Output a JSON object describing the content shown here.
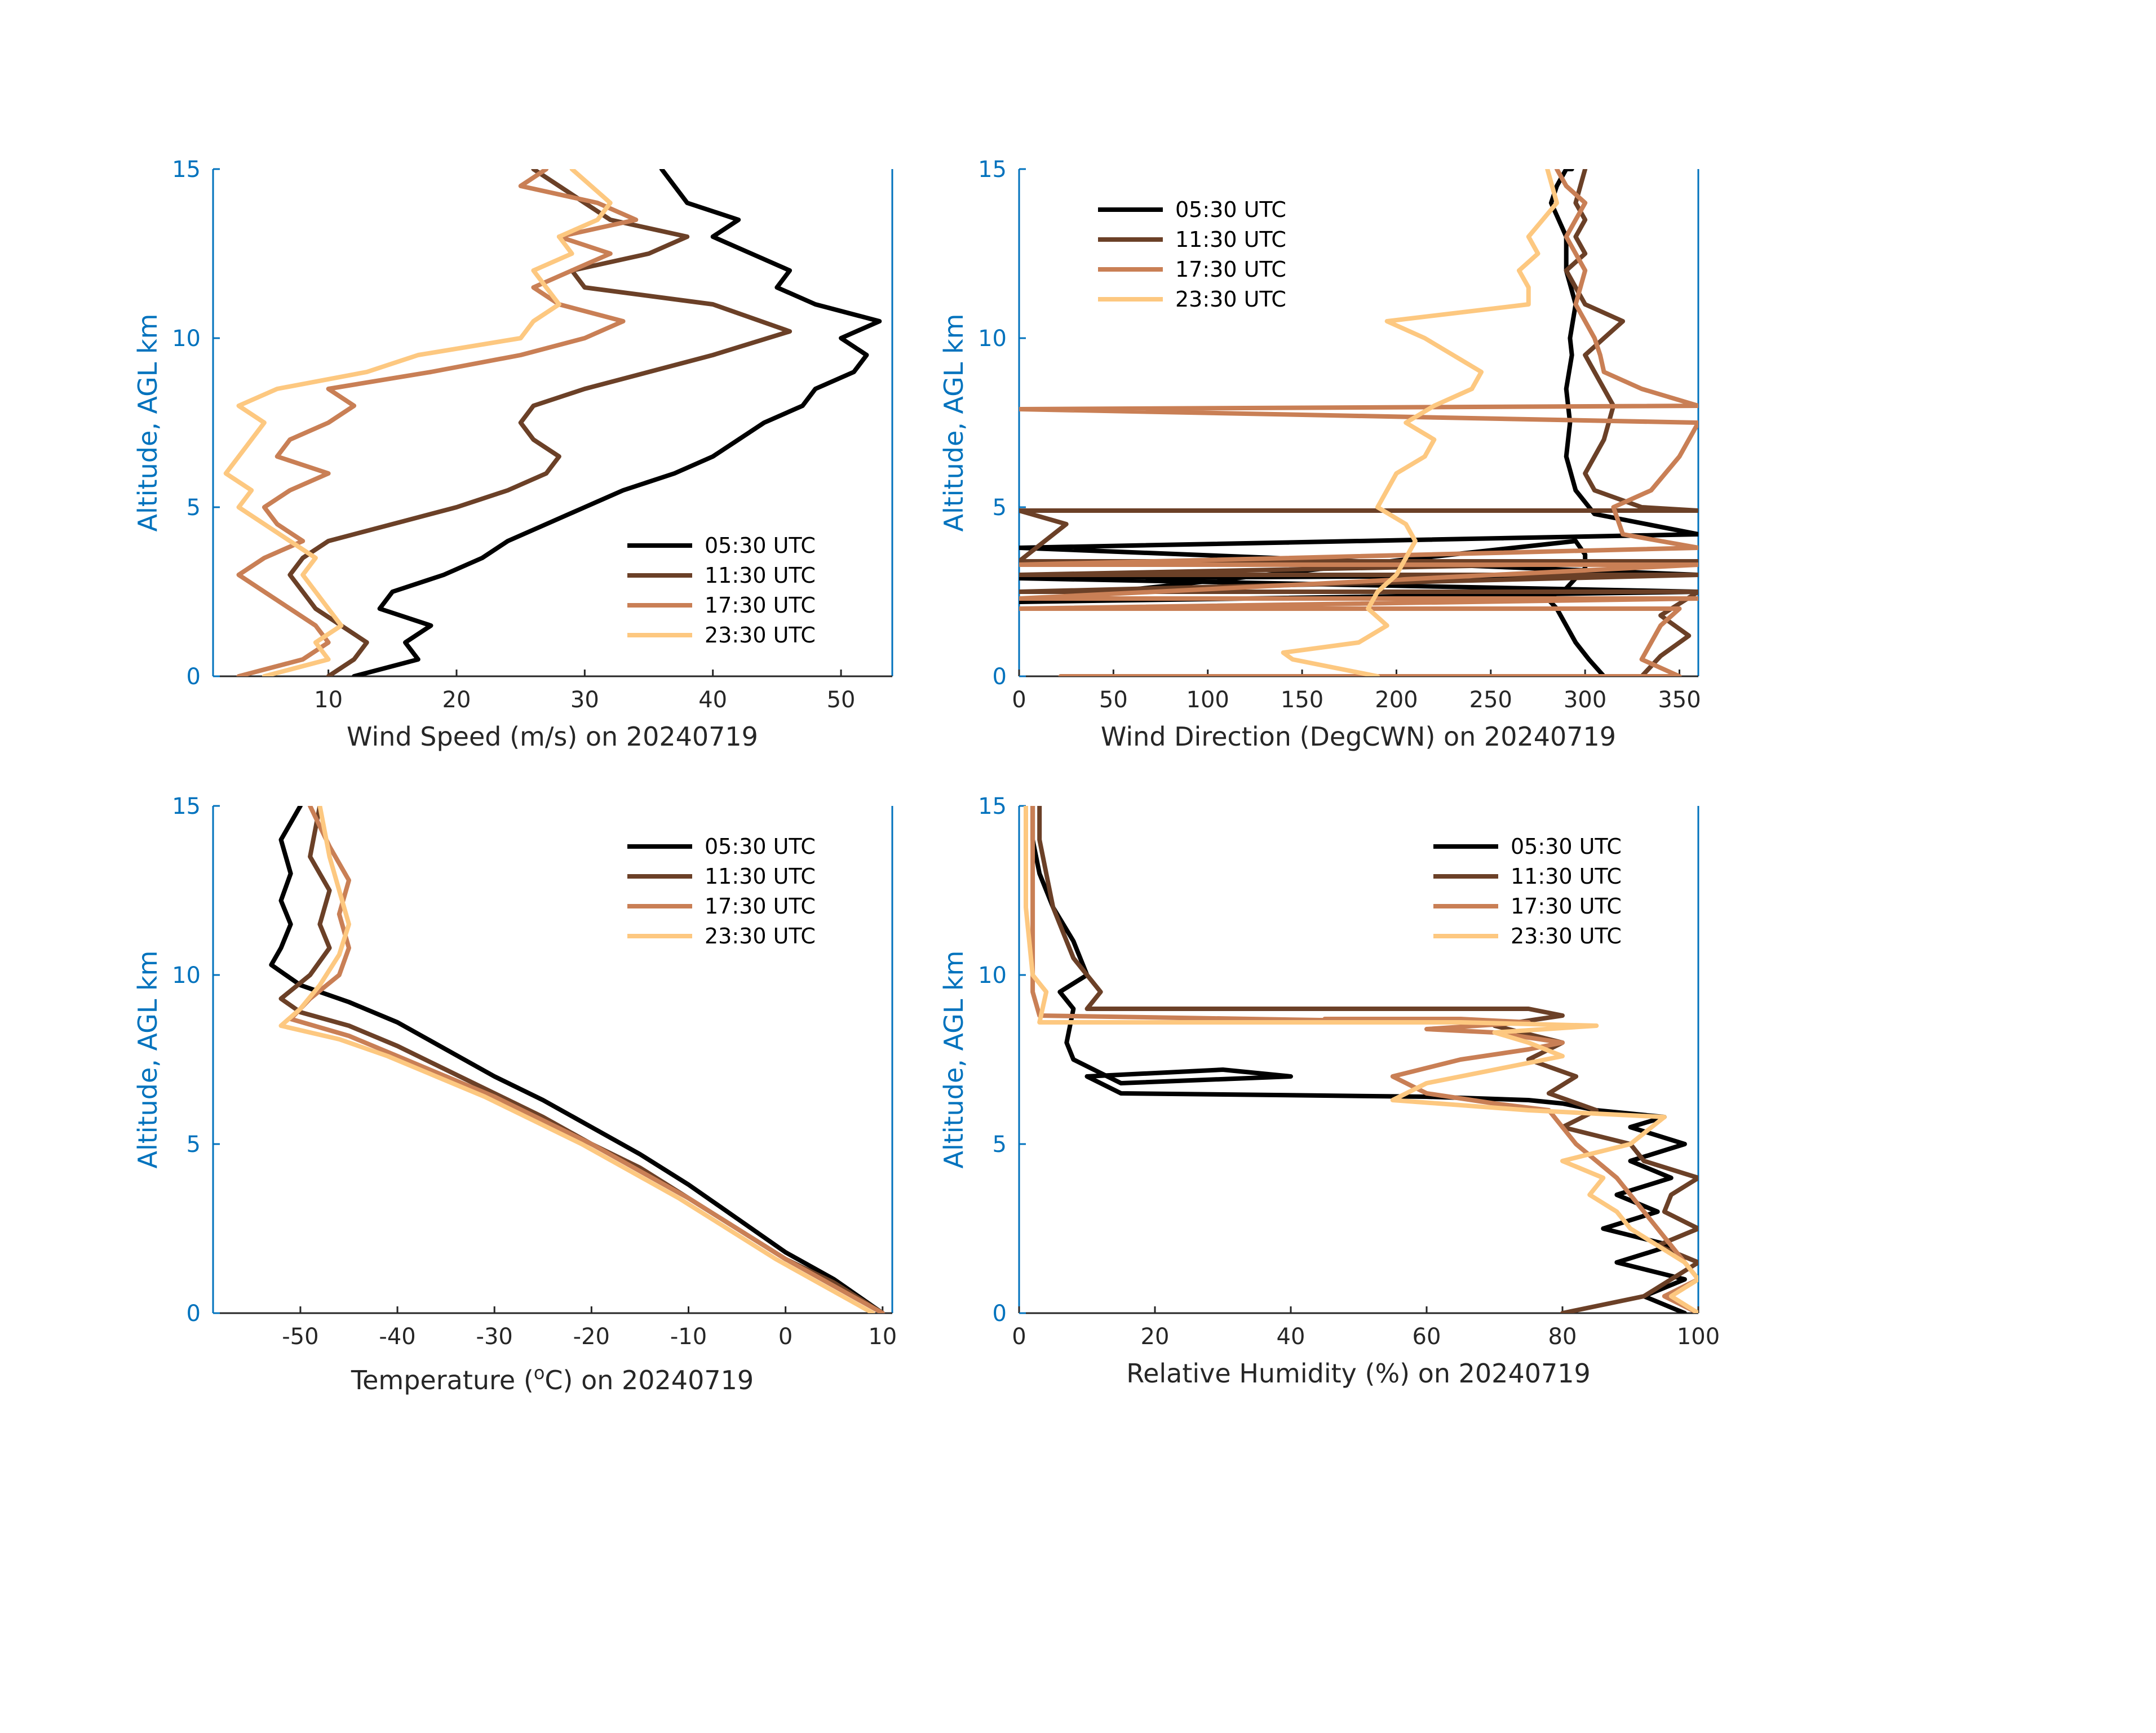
{
  "colors": {
    "axis_left": "#0072BD",
    "axis_other": "#262626",
    "series": [
      "#000000",
      "#6B4027",
      "#C97F55",
      "#FDC880"
    ]
  },
  "chart_data": [
    {
      "type": "line",
      "orientation": "profile",
      "xlabel": "Wind Speed (m/s) on 20240719",
      "ylabel": "Altitude, AGL km",
      "xlim": [
        1,
        54
      ],
      "ylim": [
        0,
        15
      ],
      "xticks": [
        10,
        20,
        30,
        40,
        50
      ],
      "yticks": [
        0,
        5,
        10,
        15
      ],
      "legend_position": "lower-right",
      "series": [
        {
          "name": "05:30 UTC",
          "x": [
            12,
            17,
            16,
            18,
            14,
            15,
            19,
            22,
            24,
            27,
            30,
            33,
            37,
            40,
            42,
            44,
            47,
            48,
            51,
            52,
            50,
            53,
            48,
            45,
            46,
            43,
            40,
            42,
            38,
            36
          ],
          "y": [
            0,
            0.5,
            1.0,
            1.5,
            2.0,
            2.5,
            3.0,
            3.5,
            4.0,
            4.5,
            5.0,
            5.5,
            6.0,
            6.5,
            7.0,
            7.5,
            8.0,
            8.5,
            9.0,
            9.5,
            10.0,
            10.5,
            11.0,
            11.5,
            12.0,
            12.5,
            13.0,
            13.5,
            14.0,
            15.0
          ]
        },
        {
          "name": "11:30 UTC",
          "x": [
            10,
            12,
            13,
            11,
            9,
            8,
            7,
            8,
            10,
            15,
            20,
            24,
            27,
            28,
            26,
            25,
            26,
            30,
            35,
            40,
            46,
            40,
            30,
            29,
            35,
            38,
            32,
            30,
            28,
            26
          ],
          "y": [
            0,
            0.5,
            1.0,
            1.5,
            2.0,
            2.5,
            3.0,
            3.5,
            4.0,
            4.5,
            5.0,
            5.5,
            6.0,
            6.5,
            7.0,
            7.5,
            8.0,
            8.5,
            9.0,
            9.5,
            10.2,
            11.0,
            11.5,
            12.0,
            12.5,
            13.0,
            13.5,
            14.0,
            14.5,
            15.0
          ]
        },
        {
          "name": "17:30 UTC",
          "x": [
            3,
            8,
            10,
            9,
            7,
            5,
            3,
            5,
            8,
            6,
            5,
            7,
            10,
            6,
            7,
            10,
            12,
            10,
            18,
            25,
            30,
            33,
            28,
            26,
            29,
            32,
            28,
            34,
            31,
            25,
            27
          ],
          "y": [
            0,
            0.5,
            1.0,
            1.5,
            2.0,
            2.5,
            3.0,
            3.5,
            4.0,
            4.5,
            5.0,
            5.5,
            6.0,
            6.5,
            7.0,
            7.5,
            8.0,
            8.5,
            9.0,
            9.5,
            10.0,
            10.5,
            11.0,
            11.5,
            12.0,
            12.5,
            13.0,
            13.5,
            14.0,
            14.5,
            15.0
          ]
        },
        {
          "name": "23:30 UTC",
          "x": [
            5,
            10,
            9,
            11,
            10,
            9,
            8,
            9,
            7,
            5,
            3,
            4,
            2,
            3,
            4,
            5,
            3,
            6,
            13,
            17,
            25,
            26,
            28,
            27,
            26,
            29,
            28,
            31,
            32,
            29
          ],
          "y": [
            0,
            0.5,
            1.0,
            1.5,
            2.0,
            2.5,
            3.0,
            3.5,
            4.0,
            4.5,
            5.0,
            5.5,
            6.0,
            6.5,
            7.0,
            7.5,
            8.0,
            8.5,
            9.0,
            9.5,
            10.0,
            10.5,
            11.0,
            11.5,
            12.0,
            12.5,
            13.0,
            13.5,
            14.0,
            15.0
          ]
        }
      ]
    },
    {
      "type": "line",
      "orientation": "profile",
      "xlabel": "Wind Direction (DegCWN) on 20240719",
      "ylabel": "Altitude, AGL km",
      "xlim": [
        0,
        360
      ],
      "ylim": [
        0,
        15
      ],
      "xticks": [
        0,
        50,
        100,
        150,
        200,
        250,
        300,
        350
      ],
      "yticks": [
        0,
        5,
        10,
        15
      ],
      "legend_position": "top-left",
      "series": [
        {
          "name": "05:30 UTC",
          "x": [
            310,
            302,
            295,
            290,
            285,
            280,
            290,
            300,
            300,
            295,
            0,
            360,
            0,
            360,
            0,
            360,
            305,
            295,
            290,
            292,
            290,
            293,
            292,
            295,
            290,
            290,
            282,
            285,
            290,
            293
          ],
          "y": [
            0,
            0.5,
            1.0,
            1.5,
            2.0,
            2.3,
            2.6,
            3.2,
            3.6,
            4.0,
            2.2,
            2.5,
            2.9,
            3.0,
            3.8,
            4.2,
            4.8,
            5.5,
            6.5,
            7.5,
            8.5,
            9.5,
            10.0,
            11.0,
            12.0,
            13.0,
            14.0,
            14.5,
            15.0,
            15.0
          ]
        },
        {
          "name": "11:30 UTC",
          "x": [
            330,
            340,
            355,
            340,
            360,
            0,
            360,
            0,
            360,
            0,
            25,
            0,
            360,
            330,
            305,
            300,
            310,
            315,
            305,
            300,
            310,
            320,
            300,
            295,
            290,
            300,
            295,
            300,
            295,
            300
          ],
          "y": [
            0,
            0.6,
            1.2,
            1.8,
            2.5,
            2.5,
            3.0,
            3.0,
            3.4,
            3.4,
            4.5,
            4.9,
            4.9,
            5.0,
            5.5,
            6.0,
            7.0,
            8.0,
            9.0,
            9.5,
            10.0,
            10.5,
            11.0,
            11.5,
            12.0,
            12.5,
            13.0,
            13.5,
            14.0,
            15.0
          ]
        },
        {
          "name": "17:30 UTC",
          "x": [
            22,
            350,
            330,
            340,
            350,
            0,
            360,
            0,
            360,
            0,
            360,
            320,
            315,
            335,
            350,
            360,
            0,
            360,
            330,
            310,
            308,
            305,
            300,
            295,
            300,
            290,
            295,
            300,
            290,
            285
          ],
          "y": [
            0,
            0,
            0.5,
            1.5,
            2.0,
            2.0,
            2.3,
            2.3,
            3.3,
            3.3,
            3.8,
            4.2,
            5.0,
            5.5,
            6.5,
            7.5,
            7.9,
            8.0,
            8.5,
            9.0,
            9.5,
            10.0,
            10.5,
            11.0,
            12.0,
            13.0,
            13.5,
            14.0,
            14.5,
            15.0
          ]
        },
        {
          "name": "23:30 UTC",
          "x": [
            190,
            145,
            140,
            180,
            195,
            185,
            190,
            200,
            205,
            210,
            205,
            190,
            195,
            200,
            215,
            220,
            205,
            220,
            240,
            245,
            230,
            215,
            195,
            270,
            270,
            265,
            275,
            270,
            285,
            280
          ],
          "y": [
            0.0,
            0.5,
            0.7,
            1.0,
            1.5,
            2.0,
            2.5,
            3.0,
            3.5,
            4.0,
            4.5,
            5.0,
            5.5,
            6.0,
            6.5,
            7.0,
            7.5,
            8.0,
            8.5,
            9.0,
            9.5,
            10.0,
            10.5,
            11.0,
            11.5,
            12.0,
            12.5,
            13.0,
            14.0,
            15.0
          ]
        }
      ]
    },
    {
      "type": "line",
      "orientation": "profile",
      "xlabel": "Temperature (oC) on 20240719",
      "xlabel_parts": {
        "before": "Temperature (",
        "sup": "o",
        "after": "C) on 20240719"
      },
      "ylabel": "Altitude, AGL km",
      "xlim": [
        -59,
        11
      ],
      "ylim": [
        0,
        15
      ],
      "xticks": [
        -50,
        -40,
        -30,
        -20,
        -10,
        0,
        10
      ],
      "yticks": [
        0,
        5,
        10,
        15
      ],
      "legend_position": "top-right",
      "series": [
        {
          "name": "05:30 UTC",
          "x": [
            10,
            5,
            0,
            -5,
            -10,
            -15,
            -20,
            -25,
            -30,
            -35,
            -40,
            -45,
            -50,
            -53,
            -52,
            -51,
            -52,
            -51,
            -52,
            -50
          ],
          "y": [
            0,
            1.0,
            1.8,
            2.8,
            3.8,
            4.7,
            5.5,
            6.3,
            7.0,
            7.8,
            8.6,
            9.2,
            9.7,
            10.3,
            10.8,
            11.5,
            12.2,
            13.0,
            14.0,
            15.0
          ]
        },
        {
          "name": "11:30 UTC",
          "x": [
            10,
            5,
            0,
            -5,
            -10,
            -15,
            -20,
            -25,
            -30,
            -35,
            -40,
            -45,
            -50,
            -52,
            -49,
            -47,
            -48,
            -47,
            -49,
            -48
          ],
          "y": [
            0,
            0.9,
            1.6,
            2.5,
            3.4,
            4.3,
            5.0,
            5.8,
            6.5,
            7.2,
            7.9,
            8.5,
            8.9,
            9.3,
            10.0,
            10.8,
            11.5,
            12.5,
            13.5,
            15.0
          ]
        },
        {
          "name": "17:30 UTC",
          "x": [
            10,
            5,
            0,
            -5,
            -10,
            -15,
            -20,
            -25,
            -30,
            -35,
            -40,
            -45,
            -51,
            -49,
            -46,
            -45,
            -46,
            -45,
            -47,
            -49
          ],
          "y": [
            0,
            0.8,
            1.6,
            2.5,
            3.4,
            4.2,
            5.0,
            5.7,
            6.4,
            7.0,
            7.6,
            8.2,
            8.7,
            9.3,
            10.0,
            10.8,
            11.8,
            12.8,
            13.8,
            15.0
          ]
        },
        {
          "name": "23:30 UTC",
          "x": [
            9,
            4,
            -1,
            -6,
            -11,
            -16,
            -21,
            -26,
            -31,
            -36,
            -41,
            -46,
            -52,
            -50,
            -48,
            -46,
            -45,
            -46,
            -47,
            -48
          ],
          "y": [
            0,
            0.8,
            1.6,
            2.5,
            3.4,
            4.2,
            5.0,
            5.7,
            6.4,
            7.0,
            7.6,
            8.1,
            8.5,
            9.0,
            9.7,
            10.6,
            11.5,
            12.5,
            13.5,
            15.0
          ]
        }
      ]
    },
    {
      "type": "line",
      "orientation": "profile",
      "xlabel": "Relative Humidity (%) on 20240719",
      "ylabel": "Altitude, AGL km",
      "xlim": [
        0,
        100
      ],
      "ylim": [
        0,
        15
      ],
      "xticks": [
        0,
        20,
        40,
        60,
        80,
        100
      ],
      "yticks": [
        0,
        5,
        10,
        15
      ],
      "legend_position": "top-right",
      "series": [
        {
          "name": "05:30 UTC",
          "x": [
            98,
            92,
            98,
            88,
            96,
            86,
            94,
            88,
            96,
            90,
            98,
            90,
            95,
            85,
            80,
            75,
            60,
            15,
            10,
            30,
            40,
            15,
            8,
            7,
            8,
            6,
            10,
            8,
            5,
            3,
            2,
            2
          ],
          "y": [
            0,
            0.5,
            1.0,
            1.5,
            2.0,
            2.5,
            3.0,
            3.5,
            4.0,
            4.5,
            5.0,
            5.5,
            5.8,
            6.0,
            6.2,
            6.3,
            6.4,
            6.5,
            7.0,
            7.2,
            7.0,
            6.8,
            7.5,
            8.0,
            9.0,
            9.5,
            10.0,
            11.0,
            12.0,
            13.0,
            14.0,
            15.0
          ]
        },
        {
          "name": "11:30 UTC",
          "x": [
            80,
            92,
            96,
            100,
            94,
            100,
            95,
            96,
            100,
            92,
            90,
            80,
            85,
            78,
            82,
            75,
            80,
            70,
            80,
            75,
            10,
            12,
            10,
            8,
            7,
            5,
            4,
            3,
            3
          ],
          "y": [
            0,
            0.5,
            1.0,
            1.5,
            2.0,
            2.5,
            3.0,
            3.5,
            4.0,
            4.5,
            5.0,
            5.5,
            6.0,
            6.5,
            7.0,
            7.5,
            8.0,
            8.5,
            8.8,
            9.0,
            9.0,
            9.5,
            10.0,
            10.5,
            11.0,
            12.0,
            13.0,
            14.0,
            15.0
          ]
        },
        {
          "name": "17:30 UTC",
          "x": [
            100,
            95,
            100,
            98,
            96,
            94,
            92,
            90,
            88,
            85,
            82,
            80,
            78,
            70,
            60,
            55,
            65,
            75,
            80,
            70,
            60,
            75,
            65,
            45,
            65,
            3,
            2,
            2,
            2,
            2
          ],
          "y": [
            0,
            0.5,
            1.0,
            1.5,
            2.0,
            2.5,
            3.0,
            3.5,
            4.0,
            4.5,
            5.0,
            5.5,
            6.0,
            6.2,
            6.5,
            7.0,
            7.5,
            7.8,
            8.0,
            8.3,
            8.4,
            8.6,
            8.7,
            8.7,
            8.6,
            8.8,
            9.5,
            11.0,
            13.0,
            15.0
          ]
        },
        {
          "name": "23:30 UTC",
          "x": [
            100,
            96,
            100,
            98,
            94,
            90,
            88,
            84,
            86,
            80,
            90,
            95,
            75,
            55,
            60,
            70,
            80,
            75,
            70,
            85,
            65,
            3,
            4,
            2,
            1,
            1
          ],
          "y": [
            0,
            0.5,
            1.0,
            1.5,
            2.0,
            2.5,
            3.0,
            3.5,
            4.0,
            4.5,
            5.0,
            5.8,
            6.0,
            6.3,
            6.8,
            7.2,
            7.6,
            8.0,
            8.3,
            8.5,
            8.6,
            8.6,
            9.5,
            10.0,
            12.0,
            15.0
          ]
        }
      ]
    }
  ]
}
